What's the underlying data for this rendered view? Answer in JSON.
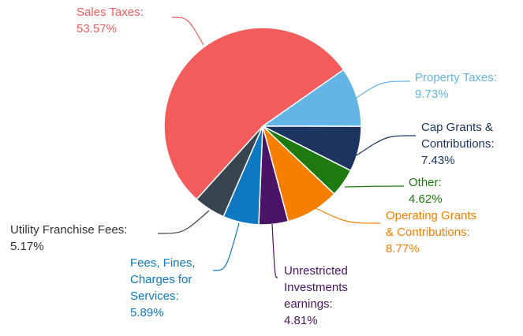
{
  "chart_data": {
    "type": "pie",
    "categories": [
      "Property Taxes:",
      "Cap Grants & Contributions:",
      "Other:",
      "Operating Grants & Contributions:",
      "Unrestricted Investments earnings:",
      "Fees, Fines, Charges for Services:",
      "Utility Franchise Fees:",
      "Sales Taxes:"
    ],
    "values": [
      9.73,
      7.43,
      4.62,
      8.77,
      4.81,
      5.89,
      5.17,
      53.57
    ],
    "value_labels": [
      "9.73%",
      "7.43%",
      "4.62%",
      "8.77%",
      "4.81%",
      "5.89%",
      "5.17%",
      "53.57%"
    ],
    "colors": [
      "#64b5e6",
      "#1d3461",
      "#1e7a0f",
      "#f77f00",
      "#4b1466",
      "#0e78c0",
      "#36454f",
      "#f45b5b"
    ]
  }
}
